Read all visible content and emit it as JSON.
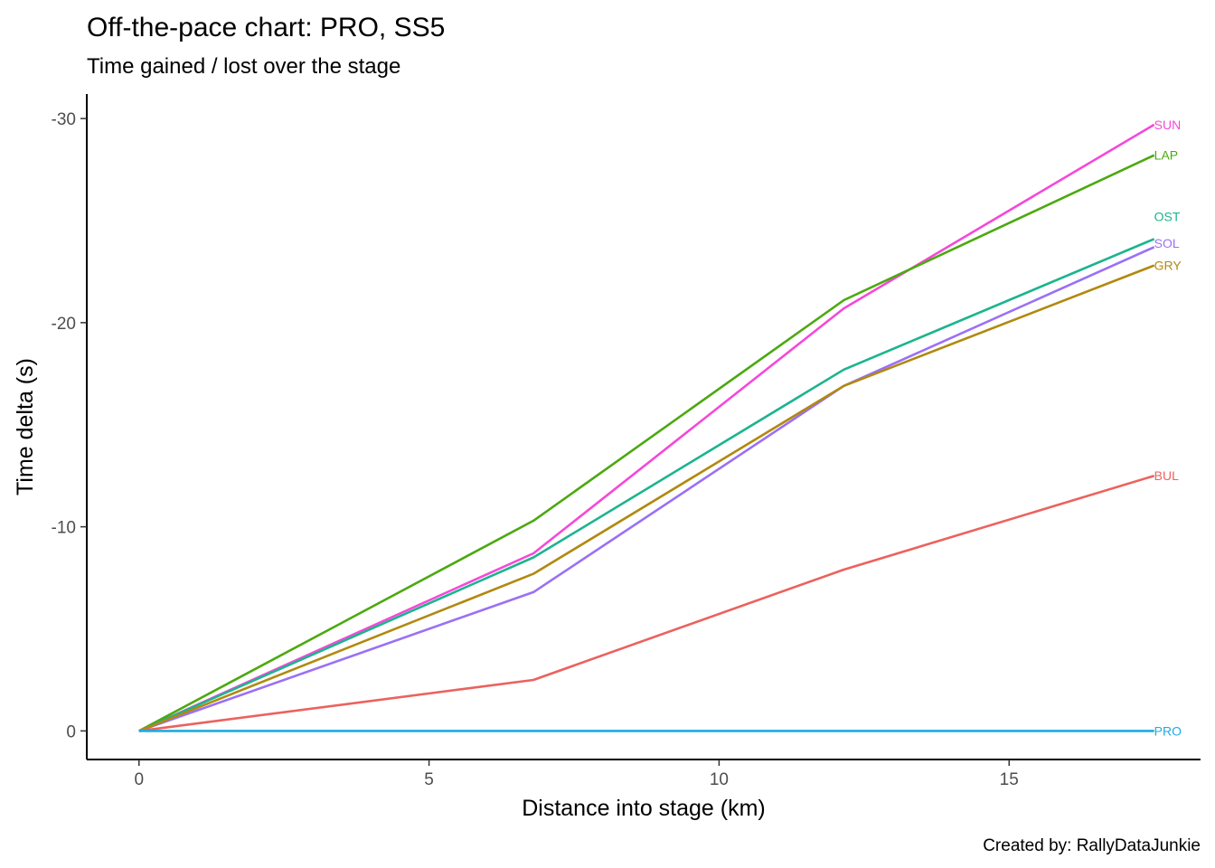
{
  "chart_data": {
    "type": "line",
    "title": "Off-the-pace chart: PRO, SS5",
    "subtitle": "Time gained / lost over the stage",
    "xlabel": "Distance into stage (km)",
    "ylabel": "Time delta (s)",
    "caption": "Created by: RallyDataJunkie",
    "xlim": [
      -0.9,
      18.3
    ],
    "ylim": [
      1.4,
      -31.2
    ],
    "y_reversed": true,
    "x_ticks": [
      0,
      5,
      10,
      15
    ],
    "x_tick_labels": [
      "0",
      "5",
      "10",
      "15"
    ],
    "y_ticks": [
      0,
      -10,
      -20,
      -30
    ],
    "y_tick_labels": [
      "0",
      "-10",
      "-20",
      "-30"
    ],
    "grid": false,
    "legend": "none (direct labels at line ends)",
    "x": [
      0,
      6.8,
      12.15,
      17.5
    ],
    "series": [
      {
        "name": "SUN",
        "color": "#F548D9",
        "values": [
          0,
          -8.7,
          -20.7,
          -29.7
        ],
        "label_offset": 0
      },
      {
        "name": "LAP",
        "color": "#4BA90F",
        "values": [
          0,
          -10.3,
          -21.1,
          -28.2
        ],
        "label_offset": 0
      },
      {
        "name": "OST",
        "color": "#1CB48E",
        "values": [
          0,
          -8.5,
          -17.7,
          -24.1
        ],
        "label_offset": -1.1
      },
      {
        "name": "SOL",
        "color": "#9A70F6",
        "values": [
          0,
          -6.8,
          -16.9,
          -23.7
        ],
        "label_offset": -0.2
      },
      {
        "name": "GRY",
        "color": "#B1890F",
        "values": [
          0,
          -7.7,
          -16.9,
          -22.8
        ],
        "label_offset": 0
      },
      {
        "name": "BUL",
        "color": "#EB625E",
        "values": [
          0,
          -2.5,
          -7.9,
          -12.5
        ],
        "label_offset": 0
      },
      {
        "name": "PRO",
        "color": "#1DABE0",
        "values": [
          0,
          0,
          0,
          0
        ],
        "label_offset": 0
      }
    ]
  }
}
